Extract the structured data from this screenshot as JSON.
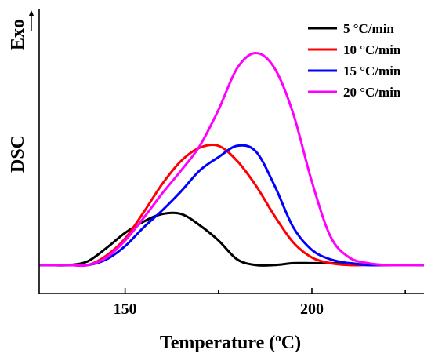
{
  "chart_data": {
    "type": "line",
    "xlabel": "Temperature (°C)",
    "xlabel_parts": {
      "pre": "Temperature (",
      "sup": "o",
      "post": "C)"
    },
    "ylabel": "DSC",
    "y_direction_label": "Exo",
    "xlim": [
      127,
      230
    ],
    "ylim": [
      -0.15,
      1.35
    ],
    "y_scale": "arbitrary units, no ticks",
    "xticks": [
      150,
      200
    ],
    "xtick_labels": [
      "150",
      "200"
    ],
    "legend_position": "top-right",
    "grid": false,
    "series": [
      {
        "name": "5 °C/min",
        "color": "#000000",
        "x": [
          127,
          130,
          135,
          140,
          145,
          150,
          155,
          160,
          165,
          170,
          175,
          180,
          185,
          190,
          195,
          200,
          205,
          210,
          215,
          220,
          225,
          230
        ],
        "y": [
          0.0,
          0.0,
          0.0,
          0.02,
          0.09,
          0.17,
          0.23,
          0.27,
          0.27,
          0.21,
          0.13,
          0.03,
          0.0,
          0.0,
          0.01,
          0.01,
          0.01,
          0.01,
          0.0,
          0.0,
          0.0,
          0.0
        ]
      },
      {
        "name": "10 °C/min",
        "color": "#ff0000",
        "x": [
          127,
          135,
          140,
          145,
          150,
          155,
          160,
          165,
          170,
          175,
          180,
          185,
          190,
          195,
          200,
          205,
          210,
          215,
          220,
          230
        ],
        "y": [
          0.0,
          0.0,
          0.0,
          0.05,
          0.14,
          0.28,
          0.43,
          0.55,
          0.62,
          0.63,
          0.55,
          0.42,
          0.26,
          0.12,
          0.04,
          0.01,
          0.0,
          0.0,
          0.0,
          0.0
        ]
      },
      {
        "name": "15 °C/min",
        "color": "#0000ff",
        "x": [
          127,
          135,
          140,
          145,
          150,
          155,
          160,
          165,
          170,
          175,
          180,
          185,
          190,
          195,
          200,
          205,
          210,
          215,
          220,
          230
        ],
        "y": [
          0.0,
          0.0,
          0.0,
          0.03,
          0.1,
          0.2,
          0.29,
          0.39,
          0.5,
          0.57,
          0.63,
          0.6,
          0.42,
          0.2,
          0.08,
          0.03,
          0.01,
          0.0,
          0.0,
          0.0
        ]
      },
      {
        "name": "20 °C/min",
        "color": "#ff00ff",
        "x": [
          127,
          135,
          140,
          145,
          150,
          155,
          160,
          165,
          170,
          175,
          180,
          185,
          190,
          195,
          200,
          205,
          210,
          215,
          220,
          230
        ],
        "y": [
          0.0,
          0.0,
          0.0,
          0.04,
          0.13,
          0.25,
          0.38,
          0.5,
          0.63,
          0.82,
          1.04,
          1.12,
          1.04,
          0.8,
          0.44,
          0.15,
          0.04,
          0.01,
          0.0,
          0.0
        ]
      }
    ],
    "legend": [
      {
        "label": "5 °C/min",
        "color": "#000000"
      },
      {
        "label": "10 °C/min",
        "color": "#ff0000"
      },
      {
        "label": "15 °C/min",
        "color": "#0000ff"
      },
      {
        "label": "20 °C/min",
        "color": "#ff00ff"
      }
    ]
  }
}
